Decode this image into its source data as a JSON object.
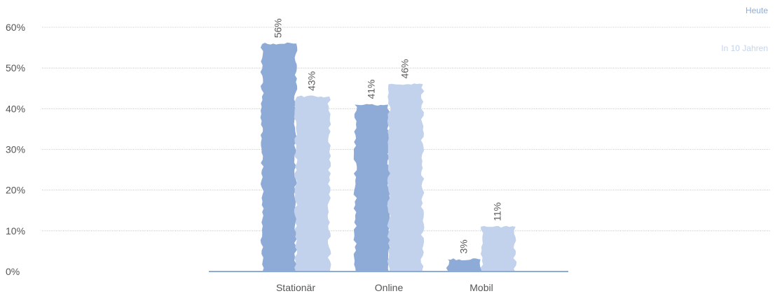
{
  "chart_data": {
    "type": "bar",
    "title": "",
    "xlabel": "",
    "ylabel": "",
    "categories": [
      "Stationär",
      "Online",
      "Mobil"
    ],
    "series": [
      {
        "name": "Heute",
        "values": [
          56,
          41,
          3
        ],
        "labels": [
          "56%",
          "41%",
          "3%"
        ],
        "color": "#8eabd8"
      },
      {
        "name": "In 10 Jahren",
        "values": [
          43,
          46,
          11
        ],
        "labels": [
          "43%",
          "46%",
          "11%"
        ],
        "color": "#c2d1ec"
      }
    ],
    "ylim": [
      0,
      60
    ],
    "yticks": [
      0,
      10,
      20,
      30,
      40,
      50,
      60
    ],
    "ytick_labels": [
      "0%",
      "10%",
      "20%",
      "30%",
      "40%",
      "50%",
      "60%"
    ],
    "grid": true,
    "legend_position": "top-right",
    "axis_color": "#8eabd8"
  }
}
